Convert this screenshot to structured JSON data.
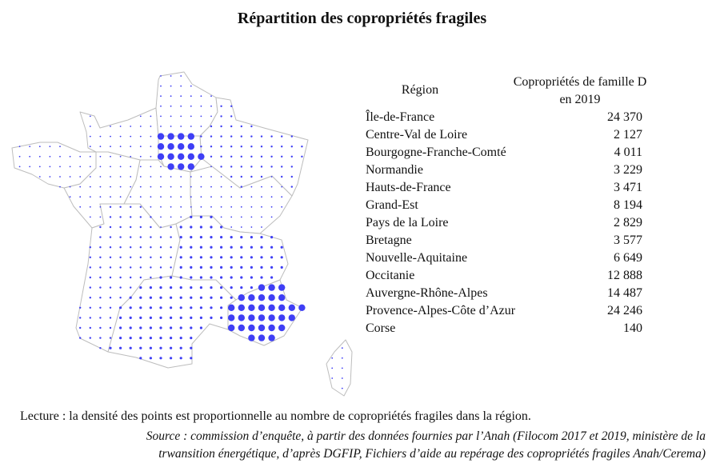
{
  "title": "Répartition des copropriétés fragiles",
  "table": {
    "header_region": "Région",
    "header_value": "Copropriétés de famille D en 2019",
    "rows": [
      {
        "region": "Île-de-France",
        "value": "24 370",
        "n": 24370
      },
      {
        "region": "Centre-Val de Loire",
        "value": "2 127",
        "n": 2127
      },
      {
        "region": "Bourgogne-Franche-Comté",
        "value": "4 011",
        "n": 4011
      },
      {
        "region": "Normandie",
        "value": "3 229",
        "n": 3229
      },
      {
        "region": "Hauts-de-France",
        "value": "3 471",
        "n": 3471
      },
      {
        "region": "Grand-Est",
        "value": "8 194",
        "n": 8194
      },
      {
        "region": "Pays de la Loire",
        "value": "2 829",
        "n": 2829
      },
      {
        "region": "Bretagne",
        "value": "3 577",
        "n": 3577
      },
      {
        "region": "Nouvelle-Aquitaine",
        "value": "6 649",
        "n": 6649
      },
      {
        "region": "Occitanie",
        "value": "12 888",
        "n": 12888
      },
      {
        "region": "Auvergne-Rhône-Alpes",
        "value": "14 487",
        "n": 14487
      },
      {
        "region": "Provence-Alpes-Côte d’Azur",
        "value": "24 246",
        "n": 24246
      },
      {
        "region": "Corse",
        "value": "140",
        "n": 140
      }
    ]
  },
  "map": {
    "dot_color": "#3f3ff5",
    "border_color": "#bdbdbd",
    "type": "dot-density"
  },
  "lecture": "Lecture : la densité des points est proportionnelle au nombre de copropriétés fragiles dans la région.",
  "source_line1": "Source : commission d’enquête, à partir des données fournies par l’Anah (Filocom 2017 et 2019, ministère de la",
  "source_line2": "trwansition énergétique, d’après DGFIP, Fichiers d’aide au repérage des copropriétés fragiles Anah/Cerema)"
}
